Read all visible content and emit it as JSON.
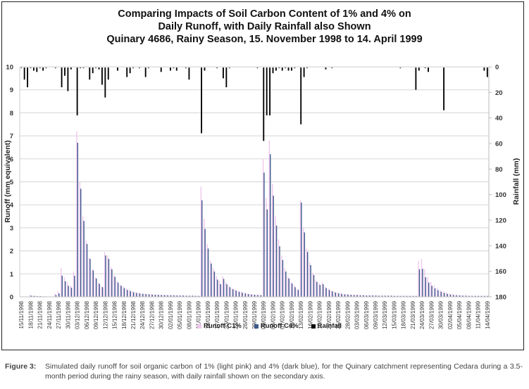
{
  "figure": {
    "label": "Figure 3:",
    "caption": "Simulated daily runoff for soil organic carbon of 1% (light pink) and 4% (dark blue), for the Quinary catchment representing Cedara during a 3.5-month period during the rainy season, with daily rainfall shown on the secondary axis."
  },
  "chart_data": {
    "type": "bar",
    "title": [
      "Comparing Impacts of Soil Carbon Content of 1% and 4% on",
      "Daily Runoff, with Daily Rainfall also Shown",
      "Quinary 4686, Rainy Season, 15. November 1998 to 14. April 1999"
    ],
    "xlabel": "",
    "ylabel": "Runoff (mm equivalent)",
    "y2label": "Rainfall (mm)",
    "ylim": [
      0,
      10
    ],
    "y2lim": [
      0,
      180
    ],
    "y2_inverted": true,
    "grid": true,
    "legend_position": "bottom",
    "yticks": [
      "0",
      "1",
      "2",
      "3",
      "4",
      "5",
      "6",
      "7",
      "8",
      "9",
      "10"
    ],
    "y2ticks": [
      "0",
      "20",
      "40",
      "60",
      "80",
      "100",
      "120",
      "140",
      "160",
      "180"
    ],
    "start_date": "15/11/1998",
    "end_date": "14/04/1999",
    "xtick_labels": [
      "15/11/1998",
      "18/11/1998",
      "21/11/1998",
      "24/11/1998",
      "27/11/1998",
      "30/11/1998",
      "03/12/1998",
      "06/12/1998",
      "09/12/1998",
      "12/12/1998",
      "15/12/1998",
      "18/12/1998",
      "21/12/1998",
      "24/12/1998",
      "27/12/1998",
      "30/12/1998",
      "02/01/1999",
      "05/01/1999",
      "08/01/1999",
      "11/01/1999",
      "14/01/1999",
      "17/01/1999",
      "20/01/1999",
      "23/01/1999",
      "26/01/1999",
      "29/01/1999",
      "01/02/1999",
      "04/02/1999",
      "07/02/1999",
      "10/02/1999",
      "13/02/1999",
      "16/02/1999",
      "19/02/1999",
      "22/02/1999",
      "25/02/1999",
      "28/02/1999",
      "03/03/1999",
      "06/03/1999",
      "09/03/1999",
      "12/03/1999",
      "15/03/1999",
      "18/03/1999",
      "21/03/1999",
      "24/03/1999",
      "27/03/1999",
      "30/03/1999",
      "02/04/1999",
      "05/04/1999",
      "08/04/1999",
      "11/04/1999",
      "14/04/1999"
    ],
    "series": [
      {
        "name": "Runoff C1%",
        "color": "#f0c8ee",
        "axis": "left",
        "values": [
          0.02,
          0.02,
          0.02,
          0.1,
          0.06,
          0.05,
          0.04,
          0.03,
          0.02,
          0.02,
          0.02,
          0.15,
          0.25,
          1.25,
          0.85,
          0.65,
          0.5,
          1.1,
          7.2,
          5.0,
          3.5,
          2.45,
          1.7,
          1.2,
          0.85,
          0.6,
          0.45,
          1.95,
          1.8,
          1.3,
          0.95,
          0.7,
          0.55,
          0.45,
          0.38,
          0.3,
          0.25,
          0.2,
          0.18,
          0.15,
          0.14,
          0.13,
          0.12,
          0.11,
          0.1,
          0.1,
          0.09,
          0.09,
          0.08,
          0.08,
          0.08,
          0.07,
          0.07,
          0.07,
          0.06,
          0.06,
          0.06,
          0.05,
          4.8,
          3.4,
          2.3,
          1.6,
          1.25,
          0.9,
          0.7,
          0.9,
          0.65,
          0.5,
          0.4,
          0.33,
          0.27,
          0.22,
          0.18,
          0.15,
          0.13,
          0.12,
          0.1,
          0.1,
          6.0,
          4.3,
          6.8,
          4.9,
          3.5,
          2.5,
          1.8,
          1.25,
          0.9,
          0.65,
          0.5,
          0.35,
          4.2,
          3.0,
          2.1,
          1.5,
          1.05,
          0.75,
          0.6,
          0.65,
          0.45,
          0.35,
          0.28,
          0.22,
          0.18,
          0.15,
          0.13,
          0.12,
          0.11,
          0.1,
          0.1,
          0.09,
          0.09,
          0.08,
          0.08,
          0.08,
          0.07,
          0.07,
          0.07,
          0.07,
          0.06,
          0.06,
          0.06,
          0.06,
          0.06,
          0.06,
          0.06,
          0.05,
          0.05,
          0.05,
          1.55,
          1.65,
          1.2,
          0.85,
          0.65,
          0.5,
          0.4,
          0.3,
          0.25,
          0.2,
          0.15,
          0.12,
          0.1,
          0.09,
          0.08,
          0.07,
          0.06,
          0.06,
          0.05,
          0.05,
          0.05,
          0.05,
          0.05
        ]
      },
      {
        "name": "Runoff C4%",
        "color": "#3e5a8c",
        "axis": "left",
        "values": [
          0.01,
          0.01,
          0.01,
          0.05,
          0.04,
          0.03,
          0.03,
          0.02,
          0.02,
          0.01,
          0.01,
          0.08,
          0.15,
          0.92,
          0.68,
          0.48,
          0.4,
          0.92,
          6.7,
          4.7,
          3.3,
          2.3,
          1.65,
          1.15,
          0.8,
          0.57,
          0.42,
          1.8,
          1.65,
          1.2,
          0.87,
          0.62,
          0.48,
          0.38,
          0.3,
          0.25,
          0.2,
          0.17,
          0.15,
          0.13,
          0.12,
          0.11,
          0.1,
          0.09,
          0.09,
          0.08,
          0.08,
          0.07,
          0.07,
          0.07,
          0.06,
          0.06,
          0.06,
          0.05,
          0.05,
          0.05,
          0.04,
          0.04,
          4.2,
          2.95,
          2.1,
          1.45,
          1.1,
          0.75,
          0.55,
          0.78,
          0.55,
          0.42,
          0.33,
          0.27,
          0.22,
          0.18,
          0.15,
          0.12,
          0.1,
          0.09,
          0.08,
          0.07,
          5.4,
          3.8,
          6.2,
          4.4,
          3.1,
          2.2,
          1.6,
          1.1,
          0.8,
          0.58,
          0.42,
          0.3,
          4.1,
          2.8,
          1.95,
          1.38,
          0.95,
          0.65,
          0.52,
          0.55,
          0.38,
          0.3,
          0.24,
          0.19,
          0.15,
          0.13,
          0.11,
          0.1,
          0.09,
          0.08,
          0.08,
          0.07,
          0.07,
          0.06,
          0.06,
          0.06,
          0.06,
          0.05,
          0.05,
          0.05,
          0.05,
          0.05,
          0.04,
          0.04,
          0.04,
          0.04,
          0.04,
          0.04,
          0.04,
          0.04,
          1.2,
          1.22,
          0.85,
          0.62,
          0.48,
          0.37,
          0.29,
          0.22,
          0.17,
          0.13,
          0.1,
          0.08,
          0.07,
          0.06,
          0.05,
          0.05,
          0.04,
          0.04,
          0.04,
          0.04,
          0.04,
          0.04,
          0.04
        ]
      },
      {
        "name": "Rainfall",
        "color": "#000000",
        "axis": "right",
        "values": [
          1,
          10,
          16,
          1,
          3,
          4,
          1,
          3,
          1,
          0,
          0,
          1,
          0,
          16,
          7,
          19,
          2,
          0,
          38,
          1,
          1,
          0,
          10,
          5,
          1,
          2,
          14,
          24,
          10,
          0,
          0,
          3,
          0,
          0,
          8,
          5,
          1,
          0,
          1,
          0,
          8,
          1,
          0,
          0,
          0,
          4,
          0,
          0,
          3,
          1,
          3,
          0,
          0,
          1,
          10,
          0,
          0,
          0,
          52,
          3,
          0,
          0,
          0,
          1,
          0,
          9,
          16,
          1,
          0,
          0,
          0,
          0,
          0,
          0,
          0,
          0,
          1,
          0,
          58,
          38,
          38,
          5,
          3,
          1,
          3,
          1,
          3,
          3,
          1,
          0,
          45,
          8,
          1,
          0,
          0,
          0,
          0,
          0,
          2,
          0,
          1,
          0,
          0,
          0,
          0,
          0,
          0,
          0,
          0,
          0,
          0,
          0,
          0,
          0,
          0,
          0,
          0,
          0,
          0,
          0,
          0,
          0,
          1,
          0,
          0,
          0,
          0,
          18,
          3,
          0,
          1,
          4,
          0,
          0,
          0,
          0,
          34,
          0,
          0,
          0,
          0,
          0,
          0,
          0,
          0,
          0,
          0,
          0,
          0,
          3,
          8
        ]
      }
    ]
  }
}
